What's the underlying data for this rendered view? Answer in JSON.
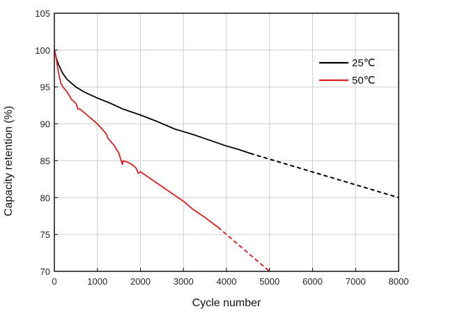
{
  "chart_data": {
    "type": "line",
    "xlabel": "Cycle number",
    "ylabel": "Capacity retention (%)",
    "xlim": [
      0,
      8000
    ],
    "ylim": [
      70,
      105
    ],
    "xticks": [
      0,
      1000,
      2000,
      3000,
      4000,
      5000,
      6000,
      7000,
      8000
    ],
    "yticks": [
      70,
      75,
      80,
      85,
      90,
      95,
      100,
      105
    ],
    "x_tick_labels": [
      "0",
      "1000",
      "2000",
      "3000",
      "4000",
      "5000",
      "6000",
      "7000",
      "8000"
    ],
    "y_tick_labels": [
      "70",
      "75",
      "80",
      "85",
      "90",
      "95",
      "100",
      "105"
    ],
    "grid": true,
    "legend_position": "top-right",
    "series": [
      {
        "name": "25℃",
        "color": "#000000",
        "x": [
          0,
          50,
          100,
          200,
          300,
          500,
          700,
          1000,
          1300,
          1600,
          2000,
          2400,
          2800,
          3200,
          3600,
          4000,
          4300,
          4550
        ],
        "y": [
          100,
          98.8,
          98.0,
          96.8,
          96.0,
          95.0,
          94.3,
          93.5,
          92.8,
          92.0,
          91.2,
          90.3,
          89.3,
          88.6,
          87.8,
          87.0,
          86.5,
          86.0
        ],
        "extrapolation": {
          "x": [
            4550,
            8000
          ],
          "y": [
            86.0,
            80.0
          ]
        }
      },
      {
        "name": "50℃",
        "color": "#e31a1c",
        "x": [
          0,
          40,
          80,
          150,
          200,
          300,
          400,
          500,
          550,
          600,
          800,
          1000,
          1200,
          1250,
          1400,
          1500,
          1580,
          1600,
          1700,
          1800,
          1900,
          1950,
          2000,
          2200,
          2500,
          2800,
          3000,
          3200,
          3500,
          3800
        ],
        "y": [
          100,
          99.0,
          97.5,
          95.5,
          95.0,
          94.3,
          93.3,
          92.8,
          92.0,
          92.0,
          91.0,
          90.0,
          88.7,
          88.0,
          87.0,
          86.0,
          84.5,
          85.0,
          84.8,
          84.5,
          84.0,
          83.3,
          83.5,
          82.7,
          81.5,
          80.3,
          79.5,
          78.5,
          77.3,
          76.0
        ],
        "extrapolation": {
          "x": [
            3800,
            5000
          ],
          "y": [
            76.0,
            70.0
          ]
        }
      }
    ]
  }
}
